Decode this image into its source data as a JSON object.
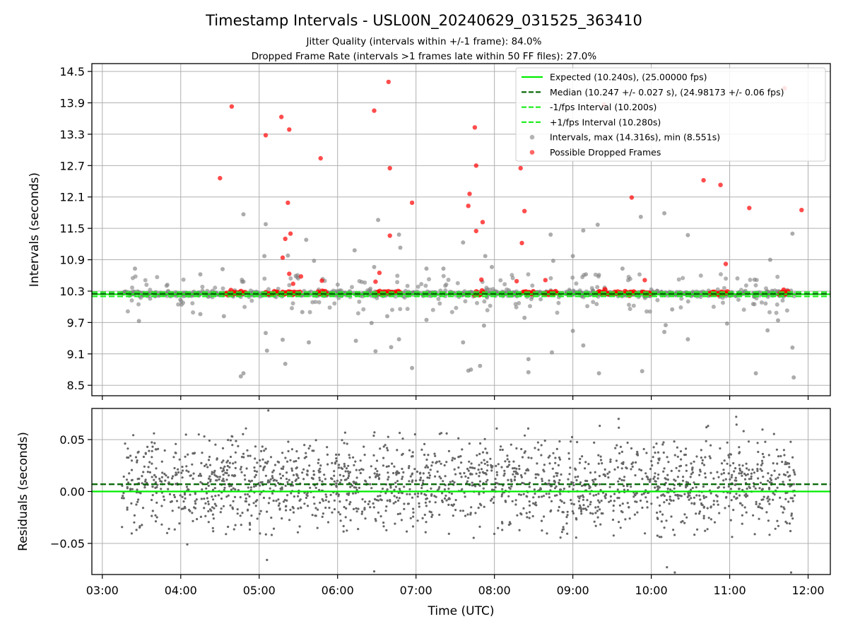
{
  "title": "Timestamp Intervals - USL00N_20240629_031525_363410",
  "subtitle_1": "Jitter Quality (intervals within +/-1 frame): 84.0%",
  "subtitle_2": "Dropped Frame Rate (intervals >1 frames late within 50 FF files): 27.0%",
  "colors": {
    "expected": "#00ee00",
    "median": "#006400",
    "fps_interval": "#22ee22",
    "intervals": "#808080",
    "dropped": "#ff0000",
    "residuals": "#666666",
    "grid": "#b0b0b0"
  },
  "chart_data": [
    {
      "type": "scatter",
      "ylabel": "Intervals (seconds)",
      "xlim": [
        "03:00",
        "12:00"
      ],
      "ylim": [
        8.5,
        14.5
      ],
      "yticks": [
        "8.5",
        "9.1",
        "9.7",
        "10.3",
        "10.9",
        "11.5",
        "12.1",
        "12.7",
        "13.3",
        "13.9",
        "14.5"
      ],
      "grid": true,
      "legend_position": "top-right",
      "reference_lines": [
        {
          "name": "Expected (10.240s), (25.00000 fps)",
          "y": 10.24,
          "style": "solid",
          "color": "#00ee00"
        },
        {
          "name": "Median (10.247 +/- 0.027 s), (24.98173 +/- 0.06 fps)",
          "y": 10.247,
          "style": "dashed",
          "color": "#006400"
        },
        {
          "name": "-1/fps Interval (10.200s)",
          "y": 10.2,
          "style": "dashed",
          "color": "#22ee22"
        },
        {
          "name": "+1/fps Interval (10.280s)",
          "y": 10.28,
          "style": "dashed",
          "color": "#22ee22"
        }
      ],
      "series": [
        {
          "name": "Intervals, max (14.316s), min (8.551s)",
          "color": "#808080",
          "x_range": [
            "03:15",
            "11:50"
          ],
          "y_core": 10.25,
          "y_max": 14.316,
          "y_min": 8.551,
          "outliers": [
            [
              "03:25",
              10.73
            ],
            [
              "03:28",
              9.73
            ],
            [
              "04:15",
              10.62
            ],
            [
              "04:15",
              9.86
            ],
            [
              "04:32",
              10.72
            ],
            [
              "04:33",
              9.82
            ],
            [
              "04:46",
              8.67
            ],
            [
              "04:48",
              11.77
            ],
            [
              "04:48",
              10.48
            ],
            [
              "04:48",
              8.73
            ],
            [
              "05:04",
              10.97
            ],
            [
              "05:05",
              9.5
            ],
            [
              "05:05",
              11.58
            ],
            [
              "05:06",
              9.16
            ],
            [
              "05:18",
              9.37
            ],
            [
              "05:20",
              8.91
            ],
            [
              "05:22",
              10.98
            ],
            [
              "05:28",
              10.59
            ],
            [
              "05:33",
              9.9
            ],
            [
              "05:38",
              9.32
            ],
            [
              "05:36",
              11.28
            ],
            [
              "05:42",
              10.88
            ],
            [
              "06:13",
              11.08
            ],
            [
              "06:14",
              9.35
            ],
            [
              "06:26",
              9.69
            ],
            [
              "06:28",
              10.76
            ],
            [
              "06:29",
              9.15
            ],
            [
              "06:31",
              11.66
            ],
            [
              "06:38",
              9.82
            ],
            [
              "06:41",
              9.23
            ],
            [
              "06:47",
              11.38
            ],
            [
              "06:47",
              9.38
            ],
            [
              "06:48",
              11.13
            ],
            [
              "06:57",
              8.83
            ],
            [
              "07:08",
              9.75
            ],
            [
              "07:08",
              10.73
            ],
            [
              "07:21",
              10.73
            ],
            [
              "07:36",
              11.23
            ],
            [
              "07:36",
              9.32
            ],
            [
              "07:40",
              8.78
            ],
            [
              "07:42",
              8.8
            ],
            [
              "07:49",
              8.87
            ],
            [
              "07:52",
              9.64
            ],
            [
              "07:53",
              10.97
            ],
            [
              "07:58",
              10.76
            ],
            [
              "08:23",
              9.79
            ],
            [
              "08:26",
              9.0
            ],
            [
              "08:26",
              8.75
            ],
            [
              "08:43",
              11.38
            ],
            [
              "08:44",
              9.13
            ],
            [
              "08:45",
              10.88
            ],
            [
              "09:00",
              10.97
            ],
            [
              "09:00",
              9.54
            ],
            [
              "09:08",
              11.46
            ],
            [
              "09:08",
              9.26
            ],
            [
              "09:10",
              10.62
            ],
            [
              "09:19",
              11.57
            ],
            [
              "09:20",
              8.73
            ],
            [
              "09:38",
              10.73
            ],
            [
              "09:52",
              11.72
            ],
            [
              "09:53",
              8.77
            ],
            [
              "10:10",
              11.79
            ],
            [
              "10:11",
              9.65
            ],
            [
              "10:10",
              9.52
            ],
            [
              "10:16",
              9.95
            ],
            [
              "10:28",
              11.37
            ],
            [
              "10:28",
              9.38
            ],
            [
              "10:58",
              9.68
            ],
            [
              "11:19",
              10.52
            ],
            [
              "11:20",
              8.73
            ],
            [
              "11:29",
              9.55
            ],
            [
              "11:31",
              10.9
            ],
            [
              "11:37",
              9.74
            ],
            [
              "11:44",
              10.32
            ],
            [
              "11:48",
              11.4
            ],
            [
              "11:48",
              9.22
            ],
            [
              "11:49",
              8.65
            ]
          ]
        },
        {
          "name": "Possible Dropped Frames",
          "color": "#ff0000",
          "clusters": [
            [
              "04:34",
              "04:50"
            ],
            [
              "05:05",
              "05:15"
            ],
            [
              "05:18",
              "05:32"
            ],
            [
              "05:45",
              "05:52"
            ],
            [
              "06:30",
              "06:48"
            ],
            [
              "07:45",
              "07:52"
            ],
            [
              "08:22",
              "08:30"
            ],
            [
              "08:38",
              "08:48"
            ],
            [
              "09:19",
              "09:28"
            ],
            [
              "09:31",
              "09:37"
            ],
            [
              "09:40",
              "09:48"
            ],
            [
              "09:53",
              "10:00"
            ],
            [
              "10:45",
              "10:59"
            ],
            [
              "11:38",
              "11:45"
            ]
          ],
          "points": [
            [
              "04:30",
              12.46
            ],
            [
              "04:39",
              13.83
            ],
            [
              "05:05",
              13.28
            ],
            [
              "05:17",
              13.63
            ],
            [
              "05:20",
              11.3
            ],
            [
              "05:18",
              10.94
            ],
            [
              "05:22",
              11.99
            ],
            [
              "05:23",
              13.39
            ],
            [
              "05:23",
              10.63
            ],
            [
              "05:24",
              11.4
            ],
            [
              "05:26",
              10.44
            ],
            [
              "05:32",
              10.58
            ],
            [
              "05:47",
              12.84
            ],
            [
              "05:48",
              10.5
            ],
            [
              "06:28",
              13.75
            ],
            [
              "06:32",
              10.65
            ],
            [
              "06:29",
              10.48
            ],
            [
              "06:39",
              14.3
            ],
            [
              "06:40",
              12.65
            ],
            [
              "06:40",
              11.36
            ],
            [
              "06:57",
              11.99
            ],
            [
              "07:40",
              11.93
            ],
            [
              "07:41",
              12.16
            ],
            [
              "07:45",
              13.43
            ],
            [
              "07:46",
              12.7
            ],
            [
              "07:46",
              11.45
            ],
            [
              "07:50",
              10.52
            ],
            [
              "07:51",
              11.62
            ],
            [
              "08:17",
              10.49
            ],
            [
              "08:20",
              12.65
            ],
            [
              "08:21",
              11.22
            ],
            [
              "08:23",
              11.83
            ],
            [
              "08:39",
              10.51
            ],
            [
              "09:24",
              13.86
            ],
            [
              "09:45",
              12.09
            ],
            [
              "09:55",
              10.51
            ],
            [
              "10:40",
              12.42
            ],
            [
              "10:53",
              12.33
            ],
            [
              "10:57",
              10.82
            ],
            [
              "11:15",
              11.89
            ],
            [
              "11:42",
              14.18
            ],
            [
              "11:55",
              11.85
            ]
          ]
        }
      ]
    },
    {
      "type": "scatter",
      "xlabel": "Time (UTC)",
      "ylabel": "Residuals (seconds)",
      "xticks": [
        "03:00",
        "04:00",
        "05:00",
        "06:00",
        "07:00",
        "08:00",
        "09:00",
        "10:00",
        "11:00",
        "12:00"
      ],
      "xlim": [
        "02:52",
        "12:17"
      ],
      "ylim": [
        -0.08,
        0.08
      ],
      "yticks": [
        "−0.05",
        "0.00",
        "0.05"
      ],
      "grid": true,
      "reference_lines": [
        {
          "y": 0.0,
          "style": "solid",
          "color": "#00ee00"
        },
        {
          "y": 0.007,
          "style": "dashed",
          "color": "#006400"
        }
      ],
      "series": [
        {
          "name": "",
          "color": "#666666",
          "x_range": [
            "03:15",
            "11:50"
          ],
          "center": 0.007,
          "spread": [
            -0.045,
            0.065
          ],
          "extremes": [
            [
              "04:05",
              -0.051
            ],
            [
              "05:06",
              -0.066
            ],
            [
              "05:07",
              0.078
            ],
            [
              "06:28",
              -0.077
            ],
            [
              "09:35",
              0.07
            ],
            [
              "10:12",
              -0.073
            ],
            [
              "10:18",
              -0.085
            ],
            [
              "11:05",
              0.072
            ],
            [
              "11:47",
              -0.08
            ]
          ]
        }
      ]
    }
  ]
}
